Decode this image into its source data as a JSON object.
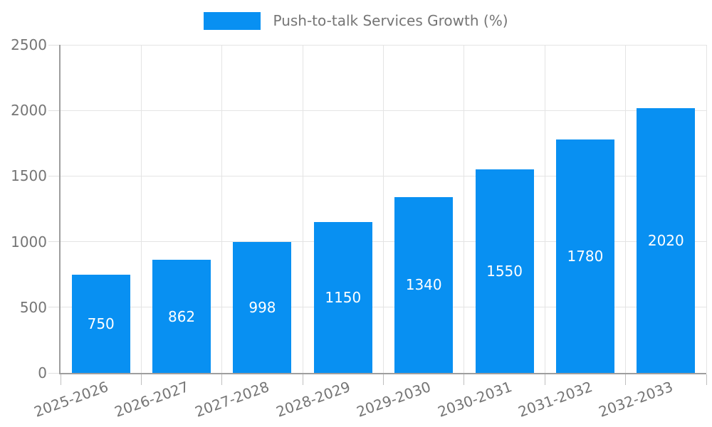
{
  "legend": {
    "label": "Push-to-talk Services Growth (%)"
  },
  "colors": {
    "bar": "#0890F2",
    "bar_value_text": "#FFFFFF",
    "axis_text": "#757575",
    "axis_line": "#9E9E9E",
    "grid_line": "#E4E4E4",
    "y_tick": "#E0E0E0",
    "x_tick": "#BFBFBF",
    "background": "#FFFFFF"
  },
  "chart_data": {
    "type": "bar",
    "title": "Push-to-talk Services Growth (%)",
    "categories": [
      "2025-2026",
      "2026-2027",
      "2027-2028",
      "2028-2029",
      "2029-2030",
      "2030-2031",
      "2031-2032",
      "2032-2033"
    ],
    "values": [
      750,
      862,
      998,
      1150,
      1340,
      1550,
      1780,
      2020
    ],
    "xlabel": "",
    "ylabel": "",
    "ylim": [
      0,
      2500
    ],
    "yticks": [
      0,
      500,
      1000,
      1500,
      2000,
      2500
    ],
    "grid": true,
    "legend_position": "top-center",
    "value_labels": "inside-center",
    "x_label_rotation_deg": -20
  }
}
